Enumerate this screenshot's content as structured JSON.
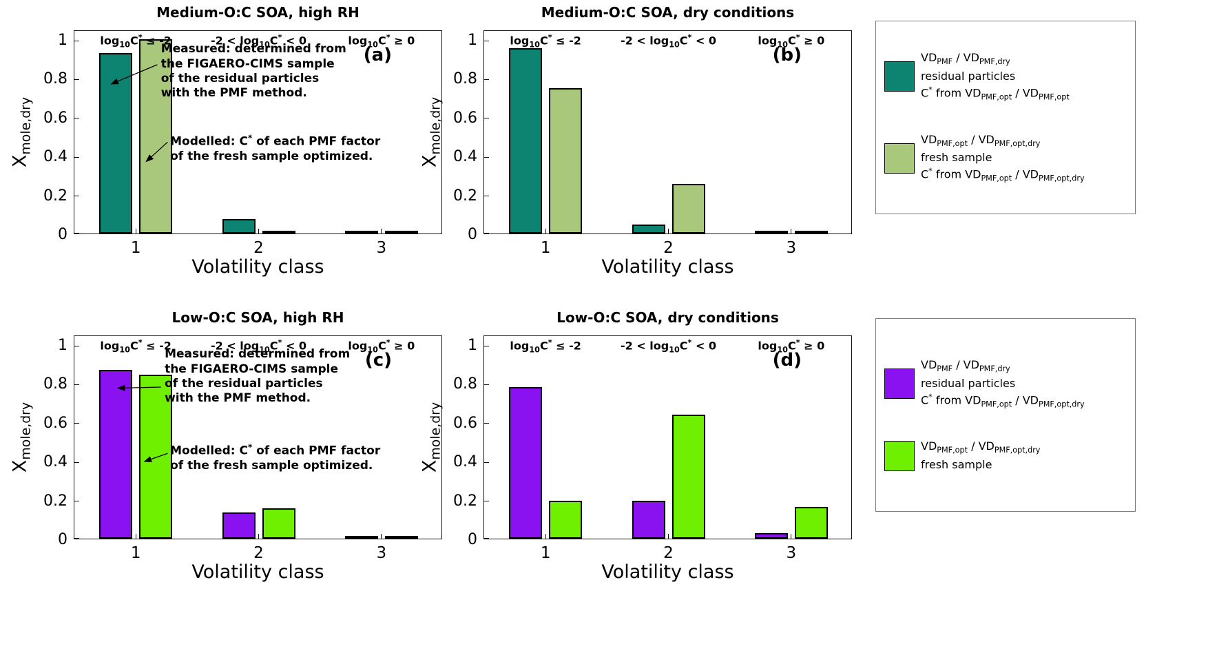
{
  "figure": {
    "background": "#ffffff"
  },
  "chart_data": [
    {
      "type": "bar",
      "panel_label": "(a)",
      "title": "Medium-O:C SOA, high RH",
      "xlabel": "Volatility class",
      "ylabel": "X~mole,dry~",
      "categories": [
        "1",
        "2",
        "3"
      ],
      "yticks": [
        0,
        0.2,
        0.4,
        0.6,
        0.8,
        1
      ],
      "ylim": [
        0,
        1.05
      ],
      "class_labels": [
        "log~10~C^*^ ≤ -2",
        "-2 < log~10~C^*^ < 0",
        "log~10~C^*^ ≥ 0"
      ],
      "series": [
        {
          "name": "measured residual particles",
          "color": "#0d8472",
          "values": [
            0.93,
            0.075,
            0.005
          ]
        },
        {
          "name": "modelled fresh sample optimized",
          "color": "#a9c87c",
          "values": [
            1.0,
            0.012,
            0.006
          ]
        }
      ],
      "annotations": [
        {
          "text": "Measured:  determined from\nthe FIGAERO-CIMS sample\nof the residual particles\nwith the PMF method.",
          "x": 0.235,
          "y": 0.055,
          "arrow": {
            "x1": 0.225,
            "y1": 0.165,
            "x2": 0.1,
            "y2": 0.26
          }
        },
        {
          "text": "Modelled:  C^*^ of each PMF factor\nof the fresh sample optimized.",
          "x": 0.26,
          "y": 0.5,
          "arrow": {
            "x1": 0.253,
            "y1": 0.545,
            "x2": 0.195,
            "y2": 0.64
          }
        }
      ]
    },
    {
      "type": "bar",
      "panel_label": "(b)",
      "title": "Medium-O:C SOA, dry conditions",
      "xlabel": "Volatility class",
      "ylabel": "X~mole,dry~",
      "categories": [
        "1",
        "2",
        "3"
      ],
      "yticks": [
        0,
        0.2,
        0.4,
        0.6,
        0.8,
        1
      ],
      "ylim": [
        0,
        1.05
      ],
      "class_labels": [
        "log~10~C^*^ ≤ -2",
        "-2 < log~10~C^*^ < 0",
        "log~10~C^*^ ≥ 0"
      ],
      "series": [
        {
          "name": "measured residual particles",
          "color": "#0d8472",
          "values": [
            0.955,
            0.046,
            0.005
          ]
        },
        {
          "name": "modelled fresh sample optimized",
          "color": "#a9c87c",
          "values": [
            0.75,
            0.255,
            0.005
          ]
        }
      ],
      "annotations": []
    },
    {
      "type": "bar",
      "panel_label": "(c)",
      "title": "Low-O:C SOA, high RH",
      "xlabel": "Volatility class",
      "ylabel": "X~mole,dry~",
      "categories": [
        "1",
        "2",
        "3"
      ],
      "yticks": [
        0,
        0.2,
        0.4,
        0.6,
        0.8,
        1
      ],
      "ylim": [
        0,
        1.05
      ],
      "class_labels": [
        "log~10~C^*^ ≤ -2",
        "-2 < log~10~C^*^ < 0",
        "log~10~C^*^ ≥ 0"
      ],
      "series": [
        {
          "name": "measured residual particles",
          "color": "#8a12f0",
          "values": [
            0.87,
            0.135,
            0.005
          ]
        },
        {
          "name": "modelled fresh sample optimized",
          "color": "#6ff000",
          "values": [
            0.845,
            0.157,
            0.006
          ]
        }
      ],
      "annotations": [
        {
          "text": "Measured:  determined from\nthe FIGAERO-CIMS sample\nof the residual particles\nwith the PMF method.",
          "x": 0.245,
          "y": 0.055,
          "arrow": {
            "x1": 0.235,
            "y1": 0.25,
            "x2": 0.118,
            "y2": 0.255
          }
        },
        {
          "text": "Modelled:  C^*^ of each PMF factor\nof the fresh sample optimized.",
          "x": 0.26,
          "y": 0.52,
          "arrow": {
            "x1": 0.253,
            "y1": 0.575,
            "x2": 0.19,
            "y2": 0.615
          }
        }
      ]
    },
    {
      "type": "bar",
      "panel_label": "(d)",
      "title": "Low-O:C SOA, dry conditions",
      "xlabel": "Volatility class",
      "ylabel": "X~mole,dry~",
      "categories": [
        "1",
        "2",
        "3"
      ],
      "yticks": [
        0,
        0.2,
        0.4,
        0.6,
        0.8,
        1
      ],
      "ylim": [
        0,
        1.05
      ],
      "class_labels": [
        "log~10~C^*^ ≤ -2",
        "-2 < log~10~C^*^ < 0",
        "log~10~C^*^ ≥ 0"
      ],
      "series": [
        {
          "name": "measured residual particles",
          "color": "#8a12f0",
          "values": [
            0.78,
            0.195,
            0.03
          ]
        },
        {
          "name": "modelled fresh sample optimized",
          "color": "#6ff000",
          "values": [
            0.195,
            0.64,
            0.165
          ]
        }
      ],
      "annotations": []
    }
  ],
  "legends": [
    {
      "entries": [
        {
          "color": "#0d8472",
          "lines": [
            "VD~PMF~ / VD~PMF,dry~",
            "residual particles",
            "C^*^ from VD~PMF,opt~ / VD~PMF,opt~"
          ]
        },
        {
          "color": "#a9c87c",
          "lines": [
            "VD~PMF,opt~ / VD~PMF,opt,dry~",
            "fresh sample",
            "C^*^ from VD~PMF,opt~ / VD~PMF,opt,dry~"
          ]
        }
      ]
    },
    {
      "entries": [
        {
          "color": "#8a12f0",
          "lines": [
            "VD~PMF~ / VD~PMF,dry~",
            "residual particles",
            "C^*^ from VD~PMF,opt~ / VD~PMF,opt,dry~"
          ]
        },
        {
          "color": "#6ff000",
          "lines": [
            "VD~PMF,opt~ / VD~PMF,opt,dry~",
            "fresh sample"
          ]
        }
      ]
    }
  ]
}
